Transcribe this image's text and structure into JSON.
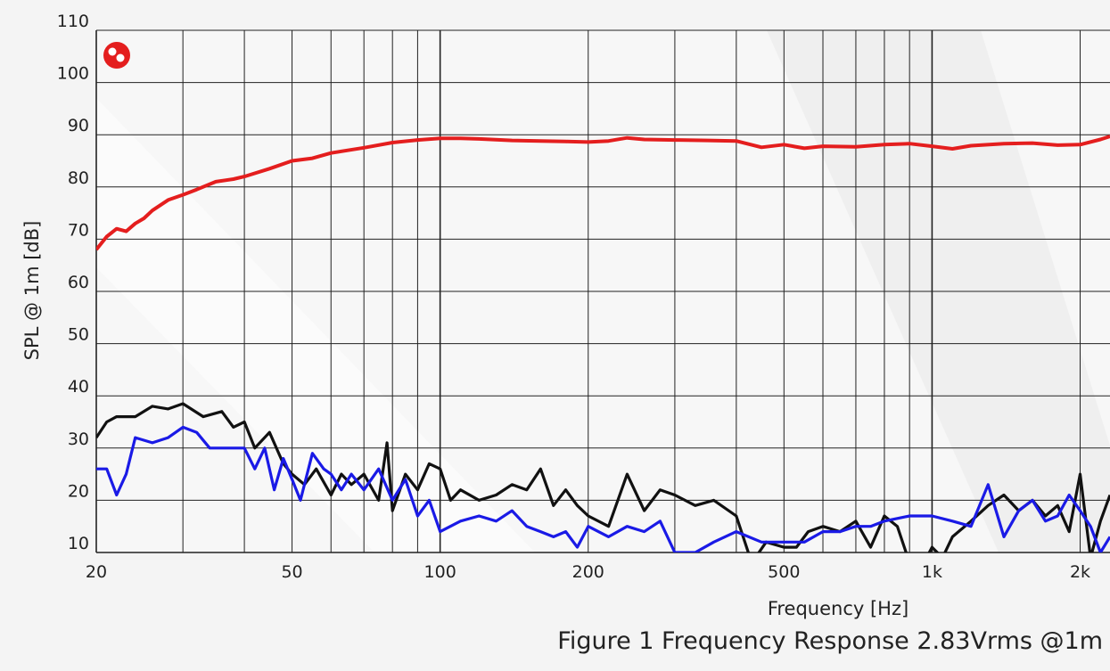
{
  "caption": "Figure 1 Frequency Response 2.83Vrms @1m",
  "chart_data": {
    "type": "line",
    "title": "",
    "xlabel": "Frequency [Hz]",
    "ylabel": "SPL @ 1m [dB]",
    "xscale": "log",
    "xlim": [
      20,
      2300
    ],
    "ylim": [
      10,
      110
    ],
    "x_ticks": [
      {
        "value": 20,
        "label": "20"
      },
      {
        "value": 50,
        "label": "50"
      },
      {
        "value": 100,
        "label": "100"
      },
      {
        "value": 200,
        "label": "200"
      },
      {
        "value": 500,
        "label": "500"
      },
      {
        "value": 1000,
        "label": "1k"
      },
      {
        "value": 2000,
        "label": "2k"
      }
    ],
    "y_ticks": [
      10,
      20,
      30,
      40,
      50,
      60,
      70,
      80,
      90,
      100,
      110
    ],
    "grid": true,
    "logo_icon": "red-circle-logo-icon",
    "series": [
      {
        "color": "#e41e1e",
        "x": [
          20,
          21,
          22,
          23,
          24,
          25,
          26,
          28,
          30,
          32,
          35,
          38,
          40,
          45,
          50,
          55,
          60,
          70,
          80,
          90,
          100,
          110,
          120,
          140,
          160,
          180,
          200,
          220,
          240,
          260,
          300,
          350,
          400,
          450,
          500,
          550,
          600,
          700,
          800,
          900,
          1000,
          1100,
          1200,
          1400,
          1600,
          1800,
          2000,
          2200,
          2300
        ],
        "y": [
          68,
          70.5,
          72,
          71.5,
          73,
          74,
          75.5,
          77.5,
          78.5,
          79.5,
          81,
          81.5,
          82,
          83.5,
          85,
          85.5,
          86.5,
          87.5,
          88.5,
          89,
          89.3,
          89.3,
          89.2,
          88.9,
          88.8,
          88.7,
          88.6,
          88.8,
          89.4,
          89.1,
          89,
          88.9,
          88.8,
          87.6,
          88.1,
          87.4,
          87.8,
          87.7,
          88.1,
          88.3,
          87.8,
          87.3,
          87.9,
          88.3,
          88.4,
          88,
          88.1,
          89.1,
          89.7
        ]
      },
      {
        "color": "#111111",
        "x": [
          20,
          21,
          22,
          24,
          26,
          28,
          30,
          33,
          36,
          38,
          40,
          42,
          45,
          48,
          50,
          53,
          56,
          60,
          63,
          66,
          70,
          75,
          78,
          80,
          85,
          90,
          95,
          100,
          105,
          110,
          120,
          130,
          140,
          150,
          160,
          170,
          180,
          190,
          200,
          220,
          240,
          260,
          280,
          300,
          330,
          360,
          400,
          430,
          460,
          500,
          530,
          560,
          600,
          650,
          700,
          750,
          800,
          850,
          900,
          950,
          1000,
          1050,
          1100,
          1200,
          1300,
          1400,
          1500,
          1600,
          1700,
          1800,
          1900,
          2000,
          2100,
          2200,
          2300
        ],
        "y": [
          32,
          35,
          36,
          36,
          38,
          37.5,
          38.5,
          36,
          37,
          34,
          35,
          30,
          33,
          27,
          25,
          23,
          26,
          21,
          25,
          23,
          25,
          20,
          31,
          18,
          25,
          22,
          27,
          26,
          20,
          22,
          20,
          21,
          23,
          22,
          26,
          19,
          22,
          19,
          17,
          15,
          25,
          18,
          22,
          21,
          19,
          20,
          17,
          8,
          12,
          11,
          11,
          14,
          15,
          14,
          16,
          11,
          17,
          15,
          8,
          7,
          11,
          9,
          13,
          16,
          19,
          21,
          18,
          20,
          17,
          19,
          14,
          25,
          9,
          16,
          21
        ]
      },
      {
        "color": "#1a1ae6",
        "x": [
          20,
          21,
          22,
          23,
          24,
          26,
          28,
          30,
          32,
          34,
          36,
          40,
          42,
          44,
          46,
          48,
          50,
          52,
          55,
          58,
          60,
          63,
          66,
          70,
          75,
          80,
          85,
          90,
          95,
          100,
          110,
          120,
          130,
          140,
          150,
          160,
          170,
          180,
          190,
          200,
          220,
          240,
          260,
          280,
          300,
          330,
          360,
          400,
          450,
          500,
          550,
          600,
          650,
          700,
          750,
          800,
          900,
          1000,
          1100,
          1200,
          1300,
          1400,
          1500,
          1600,
          1700,
          1800,
          1900,
          2000,
          2100,
          2200,
          2300
        ],
        "y": [
          26,
          26,
          21,
          25,
          32,
          31,
          32,
          34,
          33,
          30,
          30,
          30,
          26,
          30,
          22,
          28,
          24,
          20,
          29,
          26,
          25,
          22,
          25,
          22,
          26,
          20,
          24,
          17,
          20,
          14,
          16,
          17,
          16,
          18,
          15,
          14,
          13,
          14,
          11,
          15,
          13,
          15,
          14,
          16,
          10,
          10,
          12,
          14,
          12,
          12,
          12,
          14,
          14,
          15,
          15,
          16,
          17,
          17,
          16,
          15,
          23,
          13,
          18,
          20,
          16,
          17,
          21,
          18,
          15,
          10,
          13
        ]
      }
    ]
  }
}
